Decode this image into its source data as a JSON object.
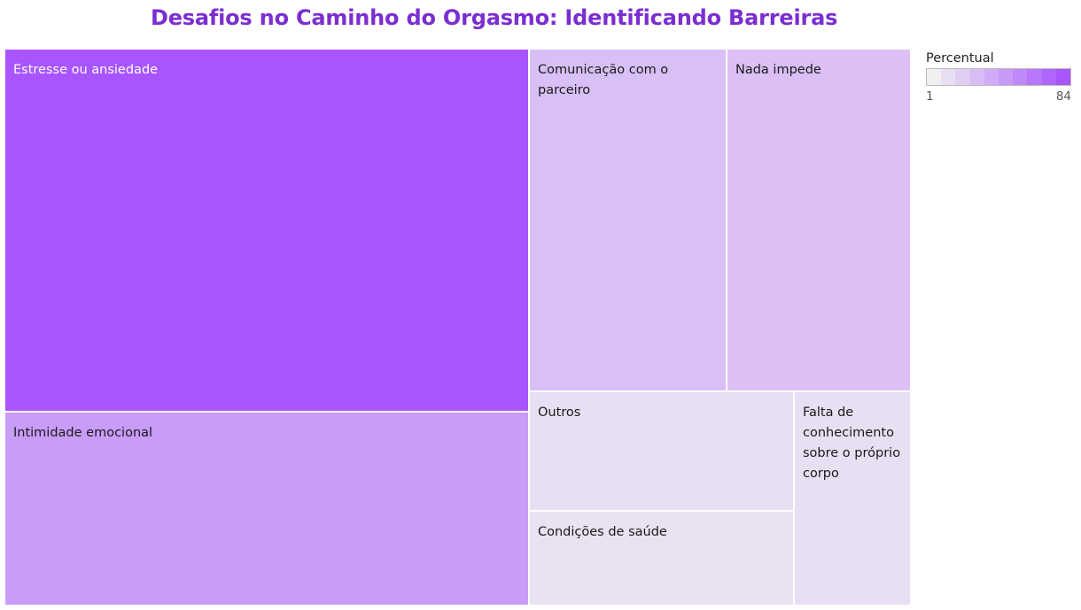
{
  "colors": {
    "title": "#7b2ed0",
    "scale_low": "#f0f0f0",
    "scale_high": "#a855ff"
  },
  "chart_data": {
    "type": "treemap",
    "title": "Desafios no Caminho do Orgasmo: Identificando Barreiras",
    "measure": "Percentual",
    "color_range": [
      1,
      84
    ],
    "items": [
      {
        "label": "Estresse ou ansiedade",
        "value": 84,
        "color": "#a855ff"
      },
      {
        "label": "Intimidade emocional",
        "value": 45,
        "color": "#c99cf8"
      },
      {
        "label": "Comunicação com o parceiro",
        "value": 25,
        "color": "#d8bff5"
      },
      {
        "label": "Nada impede",
        "value": 25,
        "color": "#dbbff5"
      },
      {
        "label": "Outros",
        "value": 10,
        "color": "#e8dff2"
      },
      {
        "label": "Falta de conhecimento sobre o próprio corpo",
        "value": 10,
        "color": "#e8dff2"
      },
      {
        "label": "Condições de saúde",
        "value": 8,
        "color": "#e9e2f2"
      }
    ]
  },
  "legend": {
    "title": "Percentual",
    "min_label": "1",
    "max_label": "84"
  }
}
